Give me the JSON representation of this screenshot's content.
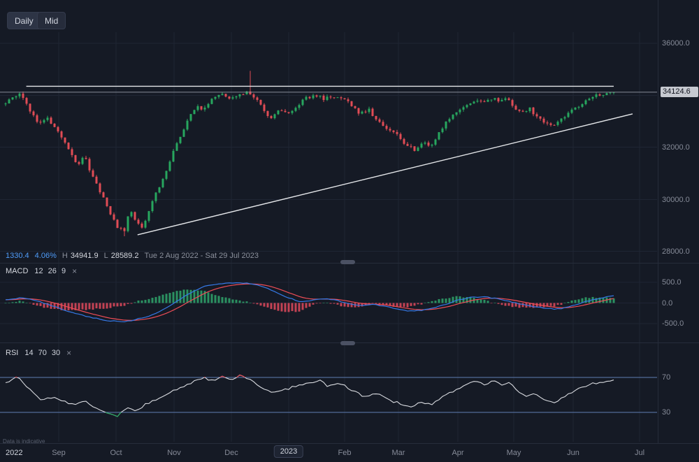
{
  "toolbar": {
    "daily": "Daily",
    "mid": "Mid"
  },
  "info_line": {
    "change": "1330.4",
    "change_pct": "4.06%",
    "high_label": "H",
    "high_value": "34941.9",
    "low_label": "L",
    "low_value": "28589.2",
    "date_range": "Tue 2 Aug 2022 - Sat 29 Jul 2023"
  },
  "indicators": {
    "macd": {
      "name": "MACD",
      "params": "12 26 9",
      "close": "×"
    },
    "rsi": {
      "name": "RSI",
      "params": "14 70 30",
      "close": "×"
    }
  },
  "price_tag": "34124.6",
  "watermark": "Data is indicative",
  "axes": {
    "price_labels": [
      "36000.0",
      "32000.0",
      "30000.0",
      "28000.0"
    ],
    "macd_labels": [
      "500.0",
      "0.0",
      "-500.0"
    ],
    "rsi_labels": [
      "70",
      "30"
    ],
    "time_labels": [
      "2022",
      "Sep",
      "Oct",
      "Nov",
      "Dec",
      "2023",
      "Feb",
      "Mar",
      "Apr",
      "May",
      "Jun",
      "Jul"
    ]
  },
  "colors": {
    "background": "#151a25",
    "up_candle": "#27a65e",
    "down_candle": "#e04c55",
    "macd_line": "#3579e6",
    "signal_line": "#ef4d57",
    "hist_pos": "#2e9e68",
    "hist_neg": "#d6475a",
    "rsi_line": "#d9dbe0",
    "rsi_level": "#5f7db3",
    "trend_line": "#e4e6e9",
    "current_price_line": "#9aa0ab",
    "grid": "#1f2534",
    "accent_blue": "#4f9cf9"
  },
  "chart_data": [
    {
      "type": "candlestick",
      "name": "Daily price",
      "timeframe": "Daily",
      "date_range": [
        "Tue 2 Aug 2022",
        "Sat 29 Jul 2023"
      ],
      "y_ticks": [
        36000,
        34000,
        32000,
        30000,
        28000
      ],
      "ylim": [
        27800,
        36400
      ],
      "last_price": 34124.6,
      "period_high": 34941.9,
      "period_low": 28589.2,
      "change": 1330.4,
      "change_pct": 4.06,
      "close_anchors": [
        [
          0,
          33650
        ],
        [
          0.012,
          33950
        ],
        [
          0.025,
          34060
        ],
        [
          0.04,
          33450
        ],
        [
          0.055,
          32900
        ],
        [
          0.068,
          33150
        ],
        [
          0.08,
          32750
        ],
        [
          0.09,
          32500
        ],
        [
          0.105,
          31900
        ],
        [
          0.118,
          31350
        ],
        [
          0.13,
          31650
        ],
        [
          0.145,
          30750
        ],
        [
          0.16,
          30100
        ],
        [
          0.172,
          29400
        ],
        [
          0.185,
          28900
        ],
        [
          0.195,
          28780
        ],
        [
          0.205,
          29650
        ],
        [
          0.215,
          29150
        ],
        [
          0.225,
          28900
        ],
        [
          0.238,
          29750
        ],
        [
          0.252,
          30450
        ],
        [
          0.265,
          31150
        ],
        [
          0.277,
          31900
        ],
        [
          0.29,
          32600
        ],
        [
          0.302,
          33150
        ],
        [
          0.315,
          33650
        ],
        [
          0.325,
          33400
        ],
        [
          0.34,
          33850
        ],
        [
          0.355,
          34050
        ],
        [
          0.37,
          33900
        ],
        [
          0.383,
          34080
        ],
        [
          0.4,
          34120
        ],
        [
          0.412,
          33850
        ],
        [
          0.425,
          33450
        ],
        [
          0.437,
          33100
        ],
        [
          0.45,
          33400
        ],
        [
          0.466,
          33300
        ],
        [
          0.48,
          33650
        ],
        [
          0.495,
          33900
        ],
        [
          0.508,
          34060
        ],
        [
          0.522,
          33850
        ],
        [
          0.538,
          33980
        ],
        [
          0.555,
          33950
        ],
        [
          0.57,
          33600
        ],
        [
          0.583,
          33300
        ],
        [
          0.597,
          33500
        ],
        [
          0.61,
          33050
        ],
        [
          0.625,
          32750
        ],
        [
          0.643,
          32550
        ],
        [
          0.658,
          32100
        ],
        [
          0.673,
          31900
        ],
        [
          0.686,
          32200
        ],
        [
          0.698,
          32000
        ],
        [
          0.712,
          32550
        ],
        [
          0.727,
          33050
        ],
        [
          0.744,
          33400
        ],
        [
          0.758,
          33650
        ],
        [
          0.772,
          33850
        ],
        [
          0.785,
          33700
        ],
        [
          0.797,
          33900
        ],
        [
          0.81,
          33780
        ],
        [
          0.822,
          33880
        ],
        [
          0.836,
          33600
        ],
        [
          0.848,
          33300
        ],
        [
          0.86,
          33520
        ],
        [
          0.872,
          33250
        ],
        [
          0.885,
          33000
        ],
        [
          0.898,
          32850
        ],
        [
          0.91,
          33050
        ],
        [
          0.925,
          33300
        ],
        [
          0.94,
          33580
        ],
        [
          0.955,
          33800
        ],
        [
          0.97,
          33980
        ],
        [
          0.985,
          34060
        ],
        [
          1,
          34124.6
        ]
      ],
      "wick_events": [
        {
          "t": 0.195,
          "low": 28589.2
        },
        {
          "t": 0.403,
          "high": 34941.9
        }
      ],
      "overlays": {
        "resistance_line": {
          "price": 34350,
          "t1": 0.034,
          "t2": 1.0
        },
        "trend_line": {
          "t1": 0.217,
          "price1": 28645,
          "t2": 1.031,
          "price2": 33289
        },
        "current_price_line": 34124.6
      }
    },
    {
      "type": "macd",
      "name": "MACD (12, 26, 9)",
      "y_ticks": [
        500,
        0,
        -500
      ],
      "signal_ema_alpha": 0.2,
      "macd_anchors": [
        [
          0,
          80
        ],
        [
          0.03,
          130
        ],
        [
          0.06,
          10
        ],
        [
          0.09,
          -140
        ],
        [
          0.12,
          -270
        ],
        [
          0.15,
          -380
        ],
        [
          0.17,
          -430
        ],
        [
          0.19,
          -455
        ],
        [
          0.21,
          -420
        ],
        [
          0.24,
          -300
        ],
        [
          0.265,
          -120
        ],
        [
          0.285,
          80
        ],
        [
          0.305,
          260
        ],
        [
          0.325,
          390
        ],
        [
          0.35,
          465
        ],
        [
          0.38,
          490
        ],
        [
          0.405,
          470
        ],
        [
          0.425,
          390
        ],
        [
          0.445,
          260
        ],
        [
          0.465,
          130
        ],
        [
          0.485,
          30
        ],
        [
          0.505,
          70
        ],
        [
          0.525,
          105
        ],
        [
          0.545,
          60
        ],
        [
          0.565,
          -15
        ],
        [
          0.585,
          -60
        ],
        [
          0.605,
          -40
        ],
        [
          0.625,
          -85
        ],
        [
          0.645,
          -140
        ],
        [
          0.665,
          -195
        ],
        [
          0.685,
          -175
        ],
        [
          0.705,
          -115
        ],
        [
          0.725,
          -25
        ],
        [
          0.745,
          70
        ],
        [
          0.765,
          135
        ],
        [
          0.785,
          150
        ],
        [
          0.805,
          115
        ],
        [
          0.825,
          55
        ],
        [
          0.845,
          -20
        ],
        [
          0.865,
          -80
        ],
        [
          0.885,
          -125
        ],
        [
          0.905,
          -150
        ],
        [
          0.925,
          -105
        ],
        [
          0.945,
          -10
        ],
        [
          0.965,
          80
        ],
        [
          0.985,
          140
        ],
        [
          1,
          165
        ]
      ]
    },
    {
      "type": "line",
      "name": "RSI (14)",
      "levels": [
        70,
        30
      ],
      "range": [
        0,
        100
      ],
      "rsi_anchors": [
        [
          0,
          64
        ],
        [
          0.02,
          70.5
        ],
        [
          0.045,
          52
        ],
        [
          0.06,
          44
        ],
        [
          0.08,
          48
        ],
        [
          0.1,
          42
        ],
        [
          0.115,
          38
        ],
        [
          0.13,
          43
        ],
        [
          0.15,
          34
        ],
        [
          0.168,
          28
        ],
        [
          0.185,
          26
        ],
        [
          0.2,
          36
        ],
        [
          0.215,
          31
        ],
        [
          0.23,
          39
        ],
        [
          0.25,
          46
        ],
        [
          0.27,
          53
        ],
        [
          0.29,
          59
        ],
        [
          0.31,
          65
        ],
        [
          0.325,
          70
        ],
        [
          0.34,
          66
        ],
        [
          0.355,
          71
        ],
        [
          0.37,
          67
        ],
        [
          0.385,
          72
        ],
        [
          0.4,
          68
        ],
        [
          0.42,
          58
        ],
        [
          0.44,
          52
        ],
        [
          0.46,
          56
        ],
        [
          0.48,
          61
        ],
        [
          0.5,
          64
        ],
        [
          0.515,
          67
        ],
        [
          0.53,
          60
        ],
        [
          0.55,
          64
        ],
        [
          0.57,
          55
        ],
        [
          0.59,
          48
        ],
        [
          0.61,
          52
        ],
        [
          0.63,
          44
        ],
        [
          0.65,
          40
        ],
        [
          0.668,
          36
        ],
        [
          0.685,
          42
        ],
        [
          0.7,
          38
        ],
        [
          0.715,
          46
        ],
        [
          0.73,
          52
        ],
        [
          0.745,
          57
        ],
        [
          0.76,
          62
        ],
        [
          0.775,
          66
        ],
        [
          0.79,
          61
        ],
        [
          0.802,
          66
        ],
        [
          0.815,
          62
        ],
        [
          0.83,
          64
        ],
        [
          0.842,
          55
        ],
        [
          0.855,
          48
        ],
        [
          0.87,
          52
        ],
        [
          0.885,
          44
        ],
        [
          0.9,
          41
        ],
        [
          0.915,
          46
        ],
        [
          0.93,
          53
        ],
        [
          0.945,
          58
        ],
        [
          0.96,
          62
        ],
        [
          0.975,
          64
        ],
        [
          1,
          67
        ]
      ]
    }
  ]
}
